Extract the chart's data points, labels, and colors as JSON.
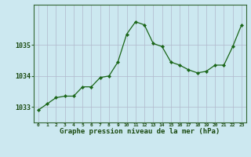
{
  "x": [
    0,
    1,
    2,
    3,
    4,
    5,
    6,
    7,
    8,
    9,
    10,
    11,
    12,
    13,
    14,
    15,
    16,
    17,
    18,
    19,
    20,
    21,
    22,
    23
  ],
  "y": [
    1032.9,
    1033.1,
    1033.3,
    1033.35,
    1033.35,
    1033.65,
    1033.65,
    1033.95,
    1034.0,
    1034.45,
    1035.35,
    1035.75,
    1035.65,
    1035.05,
    1034.95,
    1034.45,
    1034.35,
    1034.2,
    1034.1,
    1034.15,
    1034.35,
    1034.35,
    1034.95,
    1035.65
  ],
  "line_color": "#1a6618",
  "marker_color": "#1a6618",
  "bg_color": "#cce8f0",
  "grid_color_v": "#b0b8cc",
  "grid_color_h": "#b0b8cc",
  "border_color": "#336633",
  "xlabel": "Graphe pression niveau de la mer (hPa)",
  "xlabel_color": "#1a4a10",
  "tick_color": "#1a4a10",
  "yticks": [
    1033,
    1034,
    1035
  ],
  "ylim": [
    1032.5,
    1036.3
  ],
  "xlim": [
    -0.5,
    23.5
  ],
  "figsize": [
    3.2,
    2.0
  ],
  "dpi": 100
}
